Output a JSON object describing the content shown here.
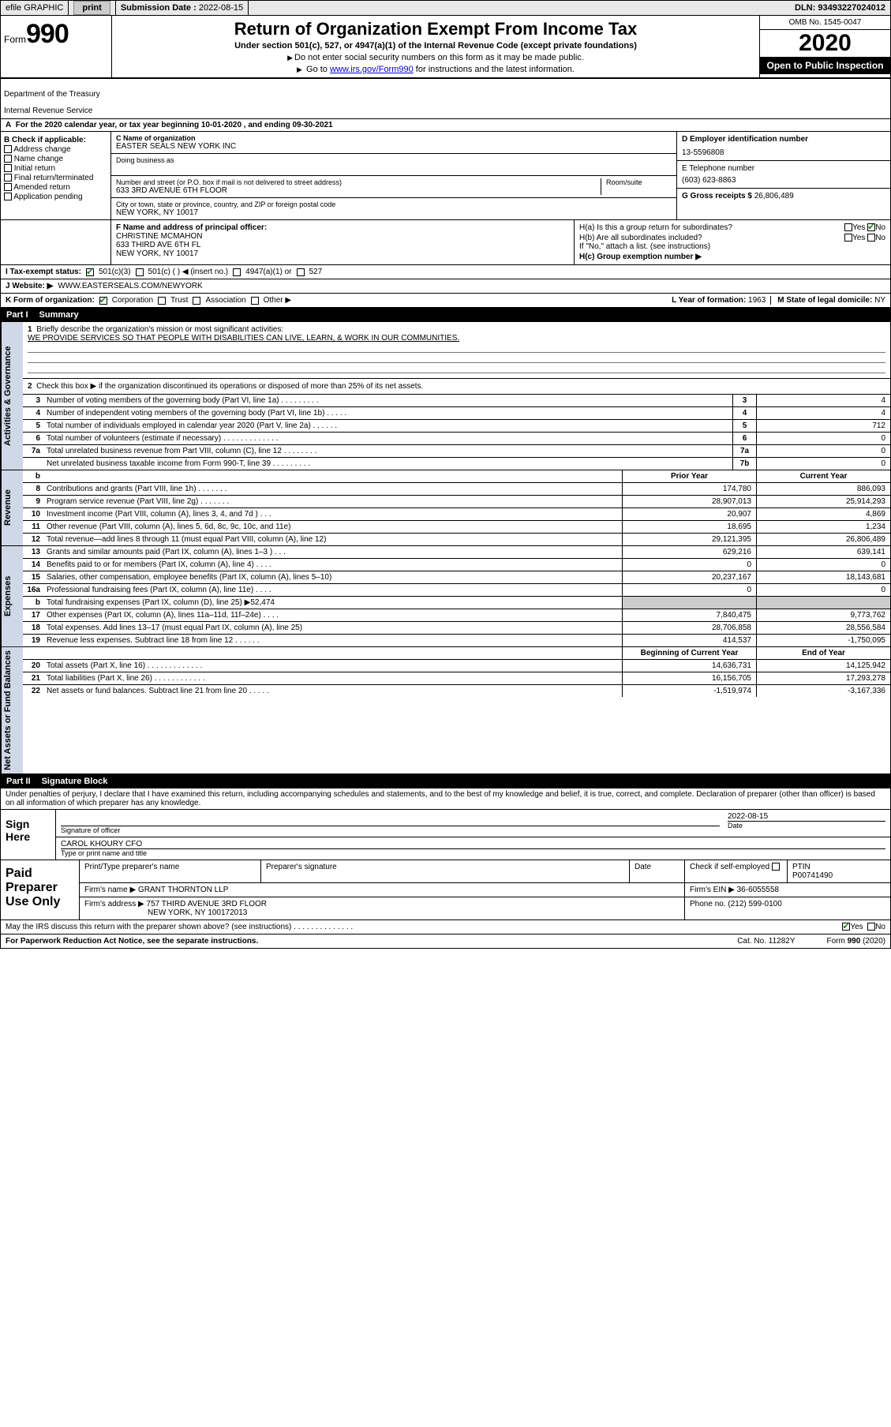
{
  "top": {
    "efile": "efile GRAPHIC",
    "print": "print",
    "subdate_label": "Submission Date :",
    "subdate": "2022-08-15",
    "dln": "DLN: 93493227024012"
  },
  "header": {
    "form_word": "Form",
    "form_no": "990",
    "dept1": "Department of the Treasury",
    "dept2": "Internal Revenue Service",
    "title": "Return of Organization Exempt From Income Tax",
    "sub": "Under section 501(c), 527, or 4947(a)(1) of the Internal Revenue Code (except private foundations)",
    "note1": "Do not enter social security numbers on this form as it may be made public.",
    "note2a": "Go to ",
    "note2_link": "www.irs.gov/Form990",
    "note2b": " for instructions and the latest information.",
    "omb": "OMB No. 1545-0047",
    "year": "2020",
    "open": "Open to Public Inspection"
  },
  "lineA": "For the 2020 calendar year, or tax year beginning 10-01-2020   , and ending 09-30-2021",
  "B": {
    "hdr": "B Check if applicable:",
    "items": [
      "Address change",
      "Name change",
      "Initial return",
      "Final return/terminated",
      "Amended return",
      "Application pending"
    ]
  },
  "C": {
    "name_label": "C Name of organization",
    "name": "EASTER SEALS NEW YORK INC",
    "dba_label": "Doing business as",
    "addr_label": "Number and street (or P.O. box if mail is not delivered to street address)",
    "room_label": "Room/suite",
    "addr": "633 3RD AVENUE 6TH FLOOR",
    "city_label": "City or town, state or province, country, and ZIP or foreign postal code",
    "city": "NEW YORK, NY  10017"
  },
  "DE": {
    "d_label": "D Employer identification number",
    "d_val": "13-5596808",
    "e_label": "E Telephone number",
    "e_val": "(603) 623-8863",
    "g_label": "G Gross receipts $",
    "g_val": "26,806,489"
  },
  "F": {
    "label": "F Name and address of principal officer:",
    "l1": "CHRISTINE MCMAHON",
    "l2": "633 THIRD AVE 6TH FL",
    "l3": "NEW YORK, NY  10017"
  },
  "H": {
    "a": "H(a)  Is this a group return for subordinates?",
    "b": "H(b)  Are all subordinates included?",
    "bnote": "If \"No,\" attach a list. (see instructions)",
    "c": "H(c)  Group exemption number ▶",
    "yes": "Yes",
    "no": "No"
  },
  "I": {
    "label": "I   Tax-exempt status:",
    "o1": "501(c)(3)",
    "o2": "501(c) (  ) ◀ (insert no.)",
    "o3": "4947(a)(1) or",
    "o4": "527"
  },
  "J": {
    "label": "J   Website: ▶",
    "val": "WWW.EASTERSEALS.COM/NEWYORK"
  },
  "K": {
    "label": "K Form of organization:",
    "o1": "Corporation",
    "o2": "Trust",
    "o3": "Association",
    "o4": "Other ▶"
  },
  "L": {
    "label": "L Year of formation:",
    "val": "1963"
  },
  "M": {
    "label": "M State of legal domicile:",
    "val": "NY"
  },
  "part1": {
    "tag": "Part I",
    "title": "Summary"
  },
  "summary": {
    "l1a": "Briefly describe the organization's mission or most significant activities:",
    "l1b": "WE PROVIDE SERVICES SO THAT PEOPLE WITH DISABILITIES CAN LIVE, LEARN, & WORK IN OUR COMMUNITIES.",
    "l2": "Check this box ▶      if the organization discontinued its operations or disposed of more than 25% of its net assets.",
    "rows_num": [
      {
        "n": "3",
        "t": "Number of voting members of the governing body (Part VI, line 1a)   .   .   .   .   .   .   .   .   .",
        "b": "3",
        "v": "4"
      },
      {
        "n": "4",
        "t": "Number of independent voting members of the governing body (Part VI, line 1b)   .   .   .   .   .",
        "b": "4",
        "v": "4"
      },
      {
        "n": "5",
        "t": "Total number of individuals employed in calendar year 2020 (Part V, line 2a)   .   .   .   .   .   .",
        "b": "5",
        "v": "712"
      },
      {
        "n": "6",
        "t": "Total number of volunteers (estimate if necessary)   .   .   .   .   .   .   .   .   .   .   .   .   .",
        "b": "6",
        "v": "0"
      },
      {
        "n": "7a",
        "t": "Total unrelated business revenue from Part VIII, column (C), line 12   .   .   .   .   .   .   .   .",
        "b": "7a",
        "v": "0"
      },
      {
        "n": "",
        "t": "Net unrelated business taxable income from Form 990-T, line 39   .   .   .   .   .   .   .   .   .",
        "b": "7b",
        "v": "0"
      }
    ],
    "col_prior": "Prior Year",
    "col_curr": "Current Year",
    "revenue": [
      {
        "n": "8",
        "t": "Contributions and grants (Part VIII, line 1h)   .   .   .   .   .   .   .",
        "p": "174,780",
        "c": "886,093"
      },
      {
        "n": "9",
        "t": "Program service revenue (Part VIII, line 2g)   .   .   .   .   .   .   .",
        "p": "28,907,013",
        "c": "25,914,293"
      },
      {
        "n": "10",
        "t": "Investment income (Part VIII, column (A), lines 3, 4, and 7d )   .   .   .",
        "p": "20,907",
        "c": "4,869"
      },
      {
        "n": "11",
        "t": "Other revenue (Part VIII, column (A), lines 5, 6d, 8c, 9c, 10c, and 11e)",
        "p": "18,695",
        "c": "1,234"
      },
      {
        "n": "12",
        "t": "Total revenue—add lines 8 through 11 (must equal Part VIII, column (A), line 12)",
        "p": "29,121,395",
        "c": "26,806,489"
      }
    ],
    "expenses": [
      {
        "n": "13",
        "t": "Grants and similar amounts paid (Part IX, column (A), lines 1–3 )   .   .   .",
        "p": "629,216",
        "c": "639,141"
      },
      {
        "n": "14",
        "t": "Benefits paid to or for members (Part IX, column (A), line 4)   .   .   .   .",
        "p": "0",
        "c": "0"
      },
      {
        "n": "15",
        "t": "Salaries, other compensation, employee benefits (Part IX, column (A), lines 5–10)",
        "p": "20,237,167",
        "c": "18,143,681"
      },
      {
        "n": "16a",
        "t": "Professional fundraising fees (Part IX, column (A), line 11e)   .   .   .   .",
        "p": "0",
        "c": "0"
      },
      {
        "n": "b",
        "t": "Total fundraising expenses (Part IX, column (D), line 25) ▶52,474",
        "p": "",
        "c": "",
        "gray": true
      },
      {
        "n": "17",
        "t": "Other expenses (Part IX, column (A), lines 11a–11d, 11f–24e)   .   .   .   .",
        "p": "7,840,475",
        "c": "9,773,762"
      },
      {
        "n": "18",
        "t": "Total expenses. Add lines 13–17 (must equal Part IX, column (A), line 25)",
        "p": "28,706,858",
        "c": "28,556,584"
      },
      {
        "n": "19",
        "t": "Revenue less expenses. Subtract line 18 from line 12   .   .   .   .   .   .",
        "p": "414,537",
        "c": "-1,750,095"
      }
    ],
    "col_beg": "Beginning of Current Year",
    "col_end": "End of Year",
    "netassets": [
      {
        "n": "20",
        "t": "Total assets (Part X, line 16)   .   .   .   .   .   .   .   .   .   .   .   .   .",
        "p": "14,636,731",
        "c": "14,125,942"
      },
      {
        "n": "21",
        "t": "Total liabilities (Part X, line 26)   .   .   .   .   .   .   .   .   .   .   .   .",
        "p": "16,156,705",
        "c": "17,293,278"
      },
      {
        "n": "22",
        "t": "Net assets or fund balances. Subtract line 21 from line 20   .   .   .   .   .",
        "p": "-1,519,974",
        "c": "-3,167,336"
      }
    ],
    "side_ag": "Activities & Governance",
    "side_rev": "Revenue",
    "side_exp": "Expenses",
    "side_na": "Net Assets or Fund Balances"
  },
  "part2": {
    "tag": "Part II",
    "title": "Signature Block"
  },
  "sig": {
    "decl": "Under penalties of perjury, I declare that I have examined this return, including accompanying schedules and statements, and to the best of my knowledge and belief, it is true, correct, and complete. Declaration of preparer (other than officer) is based on all information of which preparer has any knowledge.",
    "sign_here": "Sign Here",
    "sig_off": "Signature of officer",
    "date": "Date",
    "date_v": "2022-08-15",
    "name": "CAROL KHOURY CFO",
    "type": "Type or print name and title"
  },
  "prep": {
    "lab": "Paid Preparer Use Only",
    "h1": "Print/Type preparer's name",
    "h2": "Preparer's signature",
    "h3": "Date",
    "chk": "Check       if self-employed",
    "ptin_l": "PTIN",
    "ptin": "P00741490",
    "firm_l": "Firm's name   ▶",
    "firm": "GRANT THORNTON LLP",
    "ein_l": "Firm's EIN ▶",
    "ein": "36-6055558",
    "addr_l": "Firm's address ▶",
    "addr1": "757 THIRD AVENUE 3RD FLOOR",
    "addr2": "NEW YORK, NY  100172013",
    "phone_l": "Phone no.",
    "phone": "(212) 599-0100",
    "discuss": "May the IRS discuss this return with the preparer shown above? (see instructions)   .   .   .   .   .   .   .   .   .   .   .   .   .   .",
    "yes": "Yes",
    "no": "No"
  },
  "foot": {
    "pra": "For Paperwork Reduction Act Notice, see the separate instructions.",
    "cat": "Cat. No. 11282Y",
    "form": "Form 990 (2020)"
  },
  "colors": {
    "sidebar": "#d0d8e8",
    "ink": "#000000",
    "link": "#0000cc",
    "check": "#1a7f1a"
  }
}
